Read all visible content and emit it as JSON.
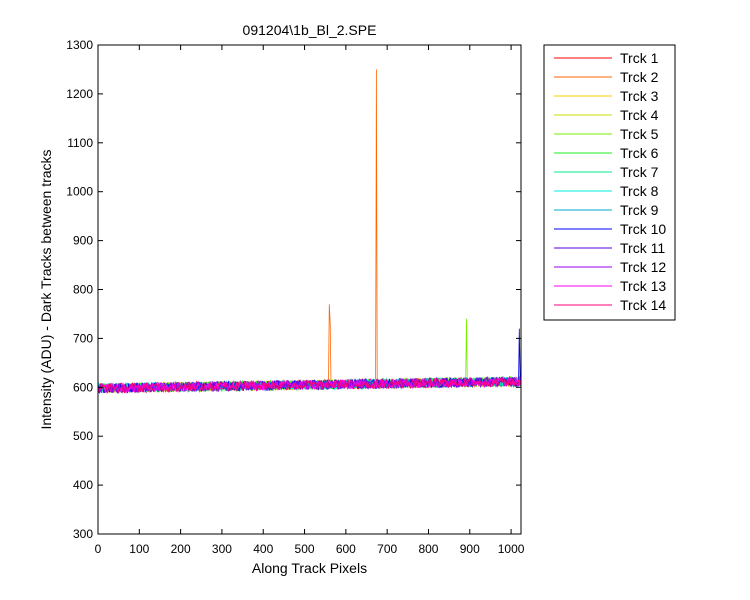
{
  "chart_data": {
    "type": "line",
    "title": "091204\\1b_Bl_2.SPE",
    "xlabel": "Along Track Pixels",
    "ylabel": "Intensity (ADU) - Dark Tracks between tracks",
    "xlim": [
      0,
      1024
    ],
    "ylim": [
      300,
      1300
    ],
    "xticks": [
      0,
      100,
      200,
      300,
      400,
      500,
      600,
      700,
      800,
      900,
      1000
    ],
    "yticks": [
      300,
      400,
      500,
      600,
      700,
      800,
      900,
      1000,
      1100,
      1200,
      1300
    ],
    "grid": false,
    "legend_position": "outside-right",
    "baseline": {
      "start": 598,
      "end": 612,
      "noise": 10
    },
    "series": [
      {
        "name": "Trck 1",
        "color": "#ff0000",
        "spikes": []
      },
      {
        "name": "Trck 2",
        "color": "#ff6600",
        "spikes": [
          {
            "x": 560,
            "y": 770
          },
          {
            "x": 562,
            "y": 730
          },
          {
            "x": 674,
            "y": 1250
          }
        ]
      },
      {
        "name": "Trck 3",
        "color": "#ffcc00",
        "spikes": []
      },
      {
        "name": "Trck 4",
        "color": "#ccdd00",
        "spikes": []
      },
      {
        "name": "Trck 5",
        "color": "#77ee00",
        "spikes": [
          {
            "x": 892,
            "y": 740
          }
        ]
      },
      {
        "name": "Trck 6",
        "color": "#22ee22",
        "spikes": []
      },
      {
        "name": "Trck 7",
        "color": "#00ee88",
        "spikes": []
      },
      {
        "name": "Trck 8",
        "color": "#00eedd",
        "spikes": []
      },
      {
        "name": "Trck 9",
        "color": "#00aacc",
        "spikes": []
      },
      {
        "name": "Trck 10",
        "color": "#0000ff",
        "spikes": [
          {
            "x": 1020,
            "y": 720
          }
        ]
      },
      {
        "name": "Trck 11",
        "color": "#5500dd",
        "spikes": []
      },
      {
        "name": "Trck 12",
        "color": "#9900ee",
        "spikes": []
      },
      {
        "name": "Trck 13",
        "color": "#ff00ee",
        "spikes": []
      },
      {
        "name": "Trck 14",
        "color": "#ff0077",
        "spikes": []
      }
    ]
  }
}
